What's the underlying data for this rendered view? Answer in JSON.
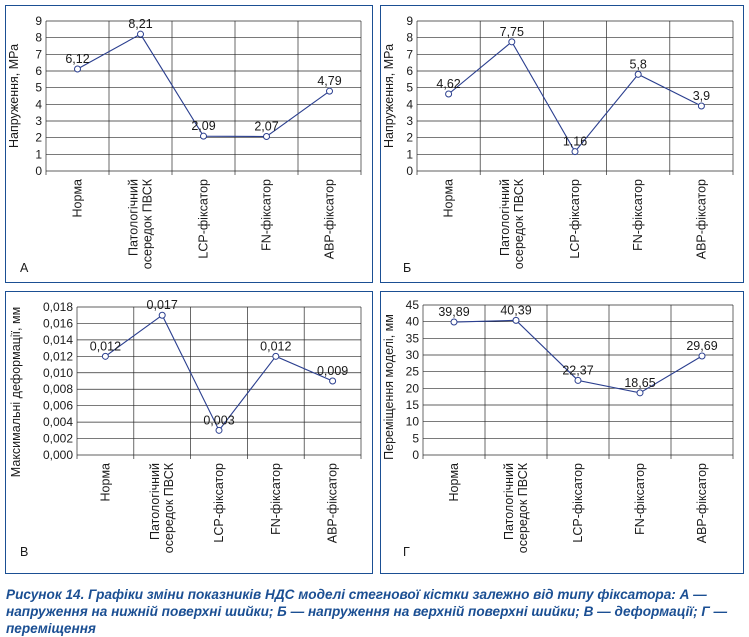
{
  "chart_data": [
    {
      "type": "line",
      "panel_label": "А",
      "ylabel": "Напруження, МРа",
      "categories": [
        "Норма",
        "Патологічний осередок ПВСК",
        "LCP-фіксатор",
        "FN-фіксатор",
        "АВР-фіксатор"
      ],
      "category_lines": [
        [
          "Норма"
        ],
        [
          "Патологічний",
          "осередок ПВСК"
        ],
        [
          "LCP-фіксатор"
        ],
        [
          "FN-фіксатор"
        ],
        [
          "АВР-фіксатор"
        ]
      ],
      "values": [
        6.12,
        8.21,
        2.09,
        2.07,
        4.79
      ],
      "value_labels": [
        "6,12",
        "8,21",
        "2,09",
        "2,07",
        "4,79"
      ],
      "ylim": [
        0,
        9
      ],
      "yticks": [
        "0",
        "1",
        "2",
        "3",
        "4",
        "5",
        "6",
        "7",
        "8",
        "9"
      ],
      "grid": true
    },
    {
      "type": "line",
      "panel_label": "Б",
      "ylabel": "Напруження, МРа",
      "categories": [
        "Норма",
        "Патологічний осередок ПВСК",
        "LCP-фіксатор",
        "FN-фіксатор",
        "АВР-фіксатор"
      ],
      "category_lines": [
        [
          "Норма"
        ],
        [
          "Патологічний",
          "осередок ПВСК"
        ],
        [
          "LCP-фіксатор"
        ],
        [
          "FN-фіксатор"
        ],
        [
          "АВР-фіксатор"
        ]
      ],
      "values": [
        4.62,
        7.75,
        1.16,
        5.8,
        3.9
      ],
      "value_labels": [
        "4,62",
        "7,75",
        "1,16",
        "5,8",
        "3,9"
      ],
      "ylim": [
        0,
        9
      ],
      "yticks": [
        "0",
        "1",
        "2",
        "3",
        "4",
        "5",
        "6",
        "7",
        "8",
        "9"
      ],
      "grid": true
    },
    {
      "type": "line",
      "panel_label": "В",
      "ylabel": "Максимальні деформації, мм",
      "categories": [
        "Норма",
        "Патологічний осередок ПВСК",
        "LCP-фіксатор",
        "FN-фіксатор",
        "АВР-фіксатор"
      ],
      "category_lines": [
        [
          "Норма"
        ],
        [
          "Патологічний",
          "осередок ПВСК"
        ],
        [
          "LCP-фіксатор"
        ],
        [
          "FN-фіксатор"
        ],
        [
          "АВР-фіксатор"
        ]
      ],
      "values": [
        0.012,
        0.017,
        0.003,
        0.012,
        0.009
      ],
      "value_labels": [
        "0,012",
        "0,017",
        "0,003",
        "0,012",
        "0,009"
      ],
      "ylim": [
        0,
        0.018
      ],
      "yticks": [
        "0,000",
        "0,002",
        "0,004",
        "0,006",
        "0,008",
        "0,010",
        "0,012",
        "0,014",
        "0,016",
        "0,018"
      ],
      "grid": true
    },
    {
      "type": "line",
      "panel_label": "Г",
      "ylabel": "Переміщення моделі, мм",
      "categories": [
        "Норма",
        "Патологічний осередок ПВСК",
        "LCP-фіксатор",
        "FN-фіксатор",
        "АВР-фіксатор"
      ],
      "category_lines": [
        [
          "Норма"
        ],
        [
          "Патологічний",
          "осередок ПВСК"
        ],
        [
          "LCP-фіксатор"
        ],
        [
          "FN-фіксатор"
        ],
        [
          "АВР-фіксатор"
        ]
      ],
      "values": [
        39.89,
        40.39,
        22.37,
        18.65,
        29.69
      ],
      "value_labels": [
        "39,89",
        "40,39",
        "22,37",
        "18,65",
        "29,69"
      ],
      "ylim": [
        0,
        45
      ],
      "yticks": [
        "0",
        "5",
        "10",
        "15",
        "20",
        "25",
        "30",
        "35",
        "40",
        "45"
      ],
      "grid": true
    }
  ],
  "caption": {
    "lead": "Рисунок 14. Графіки зміни показників НДС моделі стегнової кістки залежно від типу фіксатора: А — напруження на нижній поверхні шийки; Б — напруження на верхній поверхні шийки; В — деформації; Г — переміщення"
  },
  "colors": {
    "frame": "#1b4f93",
    "line": "#2b3f8f",
    "grid": "#2a2a2a",
    "text": "#1a1a1a",
    "caption": "#1b4f93"
  }
}
